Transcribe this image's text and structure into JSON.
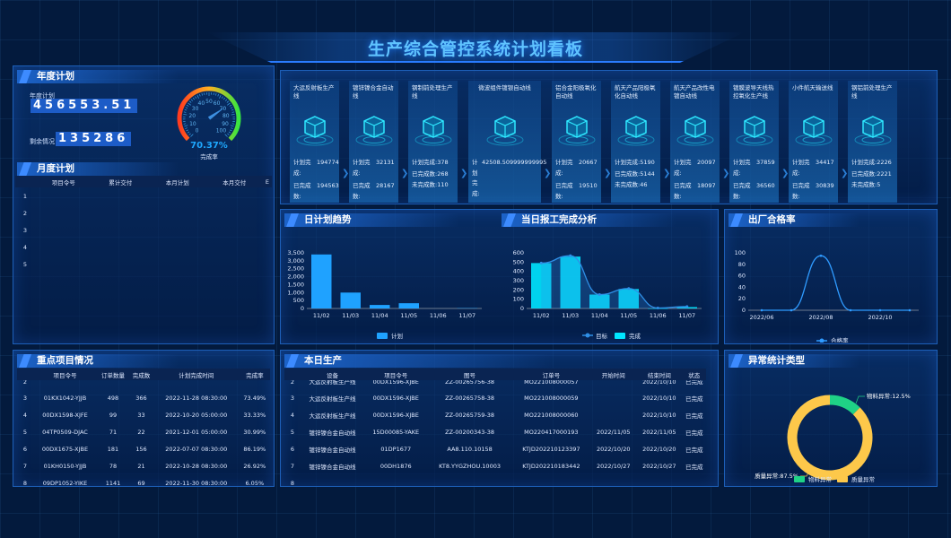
{
  "title": "生产综合管控系统计划看板",
  "annual": {
    "header": "年度计划",
    "plan_label": "年度计划",
    "plan_value": "456553.51",
    "remain_label": "剩余情况",
    "remain_value": "135286",
    "gauge": {
      "value": 70.37,
      "value_text": "70.37%",
      "label": "完成率",
      "ticks": [
        "0",
        "10",
        "20",
        "30",
        "40",
        "50",
        "60",
        "70",
        "80",
        "90",
        "100"
      ]
    }
  },
  "monthly": {
    "header": "月度计划",
    "columns": [
      "",
      "项目令号",
      "累计交付",
      "本月计划",
      "本月交付",
      "E"
    ],
    "rows": [
      "1",
      "2",
      "3",
      "4",
      "5"
    ]
  },
  "lines": [
    {
      "name": "大运反射板生产线",
      "mode": "wrap",
      "stats": [
        {
          "l": "计划完成:",
          "v": "194774"
        },
        {
          "l": "已完成数:",
          "v": "194563"
        }
      ]
    },
    {
      "name": "镀锌镍合金自动线",
      "mode": "wrap",
      "stats": [
        {
          "l": "计划完成:",
          "v": "32131"
        },
        {
          "l": "已完成数:",
          "v": "28167"
        }
      ]
    },
    {
      "name": "钢制前处理生产线",
      "mode": "inline",
      "stats": [
        {
          "l": "计划完成:",
          "v": "378"
        },
        {
          "l": "已完成数:",
          "v": "268"
        },
        {
          "l": "未完成数:",
          "v": "110"
        }
      ]
    },
    {
      "name": "微波组件镀银自动线",
      "mode": "narrow",
      "stats": [
        {
          "l": "计划完成:",
          "v": "42508.509999999995"
        }
      ]
    },
    {
      "name": "铝合金阳极氧化自动线",
      "mode": "wrap",
      "stats": [
        {
          "l": "计划完成:",
          "v": "20667"
        },
        {
          "l": "已完成数:",
          "v": "19510"
        }
      ]
    },
    {
      "name": "航天产品阳极氧化自动线",
      "mode": "inline",
      "stats": [
        {
          "l": "计划完成:",
          "v": "5190"
        },
        {
          "l": "已完成数:",
          "v": "5144"
        },
        {
          "l": "未完成数:",
          "v": "46"
        }
      ]
    },
    {
      "name": "航天产品改性电镀自动线",
      "mode": "wrap",
      "stats": [
        {
          "l": "计划完成:",
          "v": "20097"
        },
        {
          "l": "已完成数:",
          "v": "18097"
        }
      ]
    },
    {
      "name": "镀膜波导天线热控氧化生产线",
      "mode": "wrap",
      "stats": [
        {
          "l": "计划完成:",
          "v": "37859"
        },
        {
          "l": "已完成数:",
          "v": "36560"
        }
      ]
    },
    {
      "name": "小件航天输送线",
      "mode": "wrap",
      "stats": [
        {
          "l": "计划完成:",
          "v": "34417"
        },
        {
          "l": "已完成数:",
          "v": "30839"
        }
      ]
    },
    {
      "name": "钢铝前处理生产线",
      "mode": "inline",
      "stats": [
        {
          "l": "计划完成:",
          "v": "2226"
        },
        {
          "l": "已完成数:",
          "v": "2221"
        },
        {
          "l": "未完成数:",
          "v": "5"
        }
      ]
    }
  ],
  "chart_data": [
    {
      "id": "daily",
      "type": "bar",
      "title": "日计划趋势",
      "categories": [
        "11/02",
        "11/03",
        "11/04",
        "11/05",
        "11/06",
        "11/07"
      ],
      "series": [
        {
          "name": "计划",
          "values": [
            3400,
            1000,
            220,
            330,
            0,
            20
          ],
          "color": "#1fa2ff"
        }
      ],
      "ylim": [
        0,
        3500
      ],
      "yticks": [
        "0",
        "500",
        "1,000",
        "1,500",
        "2,000",
        "2,500",
        "3,000",
        "3,500"
      ],
      "legend": "bottom"
    },
    {
      "id": "report",
      "type": "bar+line",
      "title": "当日报工完成分析",
      "categories": [
        "11/02",
        "11/03",
        "11/04",
        "11/05",
        "11/06",
        "11/07"
      ],
      "series": [
        {
          "name": "目标",
          "type": "line",
          "values": [
            490,
            570,
            150,
            215,
            5,
            20
          ],
          "color": "#2f8fe6"
        },
        {
          "name": "完成",
          "type": "bar",
          "values": [
            490,
            560,
            150,
            210,
            0,
            15
          ],
          "color": "#00e5ff"
        }
      ],
      "ylim": [
        0,
        600
      ],
      "yticks": [
        "0",
        "100",
        "200",
        "300",
        "400",
        "500",
        "600"
      ],
      "legend": "bottom"
    },
    {
      "id": "pass",
      "type": "line",
      "title": "出厂合格率",
      "x": [
        "2022/06",
        "2022/07",
        "2022/08",
        "2022/09",
        "2022/10",
        "2022/11"
      ],
      "xticks": [
        "2022/06",
        "2022/08",
        "2022/10"
      ],
      "series": [
        {
          "name": "合格率",
          "values": [
            0,
            0,
            95,
            0,
            0,
            0
          ],
          "color": "#2f9bff"
        }
      ],
      "ylim": [
        0,
        100
      ],
      "yticks": [
        "0",
        "20",
        "40",
        "60",
        "80",
        "100"
      ],
      "legend": "bottom"
    },
    {
      "id": "abnormal",
      "type": "pie",
      "title": "异常统计类型",
      "series": [
        {
          "name": "物料异常",
          "value": 12.5,
          "label": "物料异常:12.5%",
          "color": "#1fd286"
        },
        {
          "name": "质量异常",
          "value": 87.5,
          "label": "质量异常:87.5%",
          "color": "#fdc84a"
        }
      ],
      "legend": "bottom"
    }
  ],
  "key_projects": {
    "header": "重点项目情况",
    "columns": [
      "",
      "项目令号",
      "订单数量",
      "完成数",
      "计划完成时间",
      "完成率"
    ],
    "rows": [
      [
        "2",
        "",
        "",
        "",
        "",
        ""
      ],
      [
        "3",
        "01KX1042-YJJB",
        "498",
        "366",
        "2022-11-28 08:30:00",
        "73.49%"
      ],
      [
        "4",
        "00DX1598-XJFE",
        "99",
        "33",
        "2022-10-20 05:00:00",
        "33.33%"
      ],
      [
        "5",
        "04TP0509-DJAC",
        "71",
        "22",
        "2021-12-01 05:00:00",
        "30.99%"
      ],
      [
        "6",
        "00DX1675-XJBE",
        "181",
        "156",
        "2022-07-07 08:30:00",
        "86.19%"
      ],
      [
        "7",
        "01KH0150-YJJB",
        "78",
        "21",
        "2022-10-28 08:30:00",
        "26.92%"
      ],
      [
        "8",
        "09DP1052-YJKE",
        "1141",
        "69",
        "2022-11-30 08:30:00",
        "6.05%"
      ]
    ]
  },
  "today": {
    "header": "本日生产",
    "columns": [
      "",
      "设备",
      "项目令号",
      "图号",
      "订单号",
      "开始时间",
      "结束时间",
      "状态"
    ],
    "rows": [
      [
        "2",
        "大运反射板生产线",
        "00DX1596-XJBE",
        "ZZ-00265756-38",
        "MO221008000057",
        "",
        "2022/10/10",
        "已完成"
      ],
      [
        "3",
        "大运反射板生产线",
        "00DX1596-XJBE",
        "ZZ-00265758-38",
        "MO221008000059",
        "",
        "2022/10/10",
        "已完成"
      ],
      [
        "4",
        "大运反射板生产线",
        "00DX1596-XJBE",
        "ZZ-00265759-38",
        "MO221008000060",
        "",
        "2022/10/10",
        "已完成"
      ],
      [
        "5",
        "镀锌镍合金自动线",
        "15D00085-YAKE",
        "ZZ-00200343-38",
        "MO220417000193",
        "2022/11/05",
        "2022/11/05",
        "已完成"
      ],
      [
        "6",
        "镀锌镍合金自动线",
        "01DP1677",
        "AA8.110.10158",
        "KTJD202210123397",
        "2022/10/20",
        "2022/10/20",
        "已完成"
      ],
      [
        "7",
        "镀锌镍合金自动线",
        "00DH1876",
        "KT8.YYGZHOU.10003",
        "KTJD202210183442",
        "2022/10/27",
        "2022/10/27",
        "已完成"
      ],
      [
        "8",
        "",
        "",
        "",
        "",
        "",
        "",
        ""
      ]
    ]
  }
}
